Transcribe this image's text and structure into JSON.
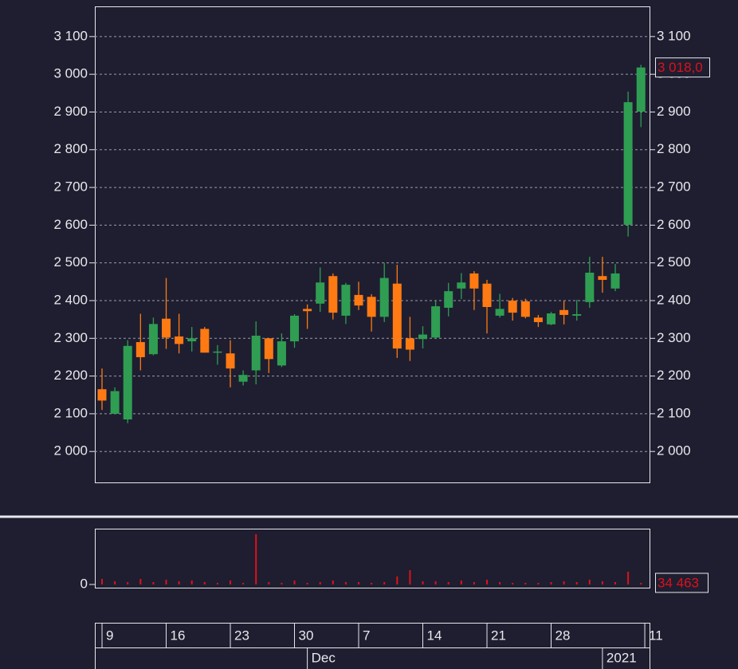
{
  "chart_data": [
    {
      "type": "candlestick",
      "open": [
        2165,
        2100,
        2085,
        2290,
        2258,
        2352,
        2305,
        2292,
        2325,
        2262,
        2260,
        2185,
        2215,
        2300,
        2228,
        2292,
        2378,
        2392,
        2465,
        2360,
        2415,
        2410,
        2357,
        2445,
        2300,
        2298,
        2302,
        2381,
        2432,
        2472,
        2445,
        2360,
        2400,
        2398,
        2355,
        2337,
        2375,
        2360,
        2396,
        2465,
        2432,
        2601,
        2901
      ],
      "high": [
        2220,
        2170,
        2295,
        2365,
        2355,
        2460,
        2365,
        2330,
        2330,
        2282,
        2295,
        2215,
        2345,
        2300,
        2313,
        2364,
        2390,
        2488,
        2472,
        2447,
        2450,
        2417,
        2500,
        2495,
        2357,
        2332,
        2400,
        2447,
        2473,
        2478,
        2455,
        2418,
        2407,
        2405,
        2362,
        2370,
        2400,
        2402,
        2516,
        2516,
        2497,
        2954,
        3025
      ],
      "low": [
        2110,
        2100,
        2075,
        2215,
        2255,
        2272,
        2260,
        2265,
        2262,
        2230,
        2170,
        2175,
        2178,
        2208,
        2224,
        2275,
        2325,
        2370,
        2350,
        2338,
        2375,
        2318,
        2343,
        2248,
        2240,
        2273,
        2298,
        2358,
        2404,
        2375,
        2313,
        2355,
        2347,
        2353,
        2330,
        2335,
        2337,
        2347,
        2381,
        2421,
        2425,
        2570,
        2860
      ],
      "close": [
        2135,
        2160,
        2280,
        2250,
        2338,
        2302,
        2285,
        2300,
        2262,
        2265,
        2220,
        2203,
        2307,
        2245,
        2292,
        2360,
        2372,
        2448,
        2368,
        2442,
        2387,
        2357,
        2460,
        2273,
        2270,
        2310,
        2385,
        2425,
        2448,
        2432,
        2383,
        2378,
        2368,
        2357,
        2343,
        2366,
        2362,
        2364,
        2474,
        2455,
        2472,
        2926,
        3018
      ],
      "up_color": "#2f9e52",
      "down_color": "#ff7a12",
      "xlim": [
        -0.56,
        42.67
      ],
      "xticks": [
        {
          "value": 0,
          "label": "9"
        },
        {
          "value": 5,
          "label": "16"
        },
        {
          "value": 10,
          "label": "23"
        },
        {
          "value": 15,
          "label": "30"
        },
        {
          "value": 20,
          "label": "7"
        },
        {
          "value": 25,
          "label": "14"
        },
        {
          "value": 30,
          "label": "21"
        },
        {
          "value": 35,
          "label": "28"
        },
        {
          "value": 42.3,
          "label": "11"
        }
      ],
      "xticks_major": [
        {
          "value": 16,
          "label": "Dec"
        },
        {
          "value": 39,
          "label": "2021"
        }
      ],
      "ylim": [
        1918,
        3180
      ],
      "yticks": [
        {
          "value": 2000,
          "label": "2 000"
        },
        {
          "value": 2100,
          "label": "2 100"
        },
        {
          "value": 2200,
          "label": "2 200"
        },
        {
          "value": 2300,
          "label": "2 300"
        },
        {
          "value": 2400,
          "label": "2 400"
        },
        {
          "value": 2500,
          "label": "2 500"
        },
        {
          "value": 2600,
          "label": "2 600"
        },
        {
          "value": 2700,
          "label": "2 700"
        },
        {
          "value": 2800,
          "label": "2 800"
        },
        {
          "value": 2900,
          "label": "2 900"
        },
        {
          "value": 3000,
          "label": "3 000"
        },
        {
          "value": 3100,
          "label": "3 100"
        }
      ],
      "grid": true,
      "last_label": "3 018,0"
    },
    {
      "type": "bar",
      "values": [
        119000,
        68000,
        51000,
        119000,
        51000,
        102000,
        68000,
        85000,
        51000,
        34000,
        85000,
        34000,
        1071000,
        51000,
        34000,
        85000,
        34000,
        51000,
        85000,
        51000,
        51000,
        34000,
        51000,
        170000,
        306000,
        68000,
        68000,
        51000,
        85000,
        51000,
        102000,
        51000,
        34000,
        34000,
        34000,
        51000,
        68000,
        51000,
        102000,
        68000,
        51000,
        272000,
        34463
      ],
      "color": "#e0101a",
      "ylim": [
        -68000,
        1190000
      ],
      "yticks": [
        0
      ],
      "last_label": "34 463"
    }
  ]
}
